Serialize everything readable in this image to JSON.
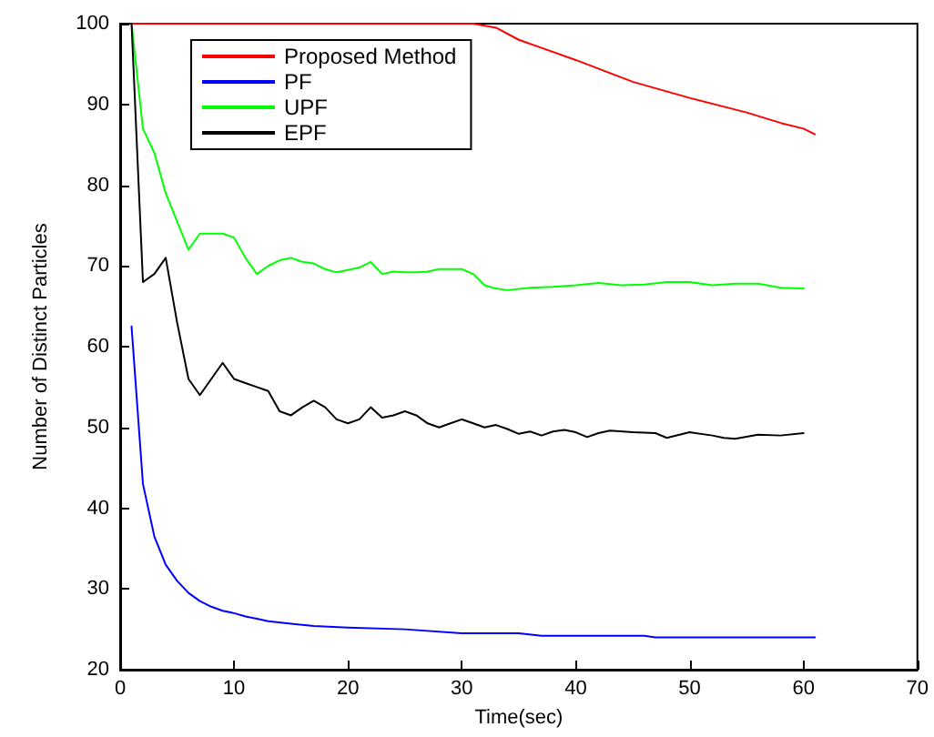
{
  "chart_data": {
    "type": "line",
    "xlabel": "Time(sec)",
    "ylabel": "Number of Distinct Particles",
    "xlim": [
      0,
      70
    ],
    "xticks": [
      0,
      10,
      20,
      30,
      40,
      50,
      60,
      70
    ],
    "ylim": [
      20,
      100
    ],
    "yticks": [
      20,
      30,
      40,
      50,
      60,
      70,
      80,
      90,
      100
    ],
    "grid": false,
    "legend": "top left",
    "marker": "none",
    "line_style": "solid",
    "series": [
      {
        "name": "Proposed Method",
        "color": "#ff0000",
        "x": [
          1,
          31,
          33,
          35,
          37,
          40,
          45,
          50,
          55,
          58,
          60,
          61
        ],
        "values": [
          100,
          100,
          99.5,
          98,
          97,
          95.5,
          92.8,
          90.8,
          89,
          87.7,
          87,
          86.3
        ]
      },
      {
        "name": "PF",
        "color": "#0000ff",
        "x": [
          1,
          2,
          3,
          4,
          5,
          6,
          7,
          8,
          9,
          10,
          11,
          12,
          13,
          15,
          17,
          20,
          25,
          30,
          35,
          37,
          46,
          47,
          61
        ],
        "values": [
          62.5,
          43,
          36.5,
          33,
          31,
          29.5,
          28.5,
          27.8,
          27.3,
          27,
          26.6,
          26.3,
          26,
          25.7,
          25.4,
          25.2,
          25,
          24.5,
          24.5,
          24.2,
          24.2,
          24,
          24
        ]
      },
      {
        "name": "UPF",
        "color": "#00ff00",
        "x": [
          1,
          2,
          3,
          4,
          5,
          6,
          7,
          8,
          9,
          10,
          11,
          12,
          13,
          14,
          15,
          16,
          17,
          18,
          19,
          20,
          21,
          22,
          23,
          24,
          25,
          26,
          27,
          28,
          29,
          30,
          31,
          32,
          33,
          34,
          36,
          38,
          40,
          42,
          44,
          46,
          48,
          50,
          52,
          54,
          56,
          58,
          60
        ],
        "values": [
          100,
          87,
          84,
          79,
          75.5,
          72,
          74,
          74,
          74,
          73.5,
          71,
          69,
          70,
          70.7,
          71,
          70.5,
          70.3,
          69.6,
          69.2,
          69.5,
          69.8,
          70.5,
          69,
          69.3,
          69.2,
          69.2,
          69.3,
          69.6,
          69.6,
          69.6,
          69,
          67.6,
          67.2,
          67,
          67.3,
          67.4,
          67.6,
          67.9,
          67.6,
          67.7,
          68,
          68,
          67.6,
          67.8,
          67.8,
          67.3,
          67.2
        ]
      },
      {
        "name": "EPF",
        "color": "#000000",
        "x": [
          1,
          2,
          3,
          4,
          5,
          6,
          7,
          8,
          9,
          10,
          11,
          12,
          13,
          14,
          15,
          16,
          17,
          18,
          19,
          20,
          21,
          22,
          23,
          24,
          25,
          26,
          27,
          28,
          29,
          30,
          31,
          32,
          33,
          34,
          35,
          36,
          37,
          38,
          39,
          40,
          41,
          42,
          43,
          45,
          47,
          48,
          50,
          52,
          53,
          54,
          56,
          58,
          60
        ],
        "values": [
          100,
          68,
          69,
          71,
          63,
          56,
          54,
          56,
          58,
          56,
          55.5,
          55,
          54.5,
          52,
          51.5,
          52.5,
          53.3,
          52.5,
          51,
          50.5,
          51,
          52.5,
          51.2,
          51.5,
          52,
          51.5,
          50.5,
          50,
          50.5,
          51,
          50.5,
          50,
          50.3,
          49.8,
          49.2,
          49.5,
          49,
          49.5,
          49.7,
          49.4,
          48.8,
          49.3,
          49.6,
          49.4,
          49.3,
          48.7,
          49.4,
          49,
          48.7,
          48.6,
          49.1,
          49,
          49.3
        ]
      }
    ]
  }
}
